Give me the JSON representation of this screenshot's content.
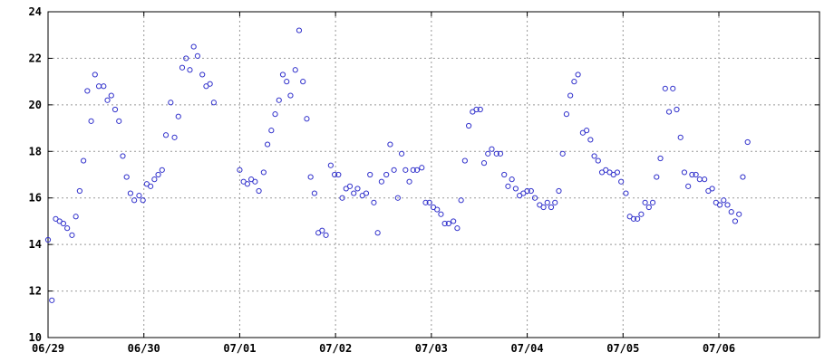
{
  "chart_data": {
    "type": "scatter",
    "title": "",
    "xlabel": "",
    "ylabel": "",
    "grid": true,
    "legend": "none",
    "xlim": [
      0,
      8.05
    ],
    "ylim": [
      10,
      24
    ],
    "x_ticks": [
      {
        "value": 0,
        "label": "06/29"
      },
      {
        "value": 1,
        "label": "06/30"
      },
      {
        "value": 2,
        "label": "07/01"
      },
      {
        "value": 3,
        "label": "07/02"
      },
      {
        "value": 4,
        "label": "07/03"
      },
      {
        "value": 5,
        "label": "07/04"
      },
      {
        "value": 6,
        "label": "07/05"
      },
      {
        "value": 7,
        "label": "07/06"
      }
    ],
    "y_ticks": [
      {
        "value": 10,
        "label": "10"
      },
      {
        "value": 12,
        "label": "12"
      },
      {
        "value": 14,
        "label": "14"
      },
      {
        "value": 16,
        "label": "16"
      },
      {
        "value": 18,
        "label": "18"
      },
      {
        "value": 20,
        "label": "20"
      },
      {
        "value": 22,
        "label": "22"
      },
      {
        "value": 24,
        "label": "24"
      }
    ],
    "colors": {
      "marker": "#3333cc",
      "grid": "#999999",
      "axis": "#000000"
    },
    "series": [
      {
        "points": [
          [
            0.0,
            14.2
          ],
          [
            0.04,
            11.6
          ],
          [
            0.08,
            15.1
          ],
          [
            0.12,
            15.0
          ],
          [
            0.16,
            14.9
          ],
          [
            0.2,
            14.7
          ],
          [
            0.25,
            14.4
          ],
          [
            0.29,
            15.2
          ],
          [
            0.33,
            16.3
          ],
          [
            0.37,
            17.6
          ],
          [
            0.41,
            20.6
          ],
          [
            0.45,
            19.3
          ],
          [
            0.49,
            21.3
          ],
          [
            0.53,
            20.8
          ],
          [
            0.58,
            20.8
          ],
          [
            0.62,
            20.2
          ],
          [
            0.66,
            20.4
          ],
          [
            0.7,
            19.8
          ],
          [
            0.74,
            19.3
          ],
          [
            0.78,
            17.8
          ],
          [
            0.82,
            16.9
          ],
          [
            0.86,
            16.2
          ],
          [
            0.9,
            15.9
          ],
          [
            0.95,
            16.1
          ],
          [
            0.99,
            15.9
          ],
          [
            1.03,
            16.6
          ],
          [
            1.07,
            16.5
          ],
          [
            1.11,
            16.8
          ],
          [
            1.15,
            17.0
          ],
          [
            1.19,
            17.2
          ],
          [
            1.23,
            18.7
          ],
          [
            1.28,
            20.1
          ],
          [
            1.32,
            18.6
          ],
          [
            1.36,
            19.5
          ],
          [
            1.4,
            21.6
          ],
          [
            1.44,
            22.0
          ],
          [
            1.48,
            21.5
          ],
          [
            1.52,
            22.5
          ],
          [
            1.56,
            22.1
          ],
          [
            1.61,
            21.3
          ],
          [
            1.65,
            20.8
          ],
          [
            1.69,
            20.9
          ],
          [
            1.73,
            20.1
          ],
          [
            2.0,
            17.2
          ],
          [
            2.04,
            16.7
          ],
          [
            2.08,
            16.6
          ],
          [
            2.12,
            16.8
          ],
          [
            2.16,
            16.7
          ],
          [
            2.2,
            16.3
          ],
          [
            2.25,
            17.1
          ],
          [
            2.29,
            18.3
          ],
          [
            2.33,
            18.9
          ],
          [
            2.37,
            19.6
          ],
          [
            2.41,
            20.2
          ],
          [
            2.45,
            21.3
          ],
          [
            2.49,
            21.0
          ],
          [
            2.53,
            20.4
          ],
          [
            2.58,
            21.5
          ],
          [
            2.62,
            23.2
          ],
          [
            2.66,
            21.0
          ],
          [
            2.7,
            19.4
          ],
          [
            2.74,
            16.9
          ],
          [
            2.78,
            16.2
          ],
          [
            2.82,
            14.5
          ],
          [
            2.86,
            14.6
          ],
          [
            2.9,
            14.4
          ],
          [
            2.95,
            17.4
          ],
          [
            2.99,
            17.0
          ],
          [
            3.03,
            17.0
          ],
          [
            3.07,
            16.0
          ],
          [
            3.11,
            16.4
          ],
          [
            3.15,
            16.5
          ],
          [
            3.19,
            16.2
          ],
          [
            3.23,
            16.4
          ],
          [
            3.28,
            16.1
          ],
          [
            3.32,
            16.2
          ],
          [
            3.36,
            17.0
          ],
          [
            3.4,
            15.8
          ],
          [
            3.44,
            14.5
          ],
          [
            3.48,
            16.7
          ],
          [
            3.53,
            17.0
          ],
          [
            3.57,
            18.3
          ],
          [
            3.61,
            17.2
          ],
          [
            3.65,
            16.0
          ],
          [
            3.69,
            17.9
          ],
          [
            3.73,
            17.2
          ],
          [
            3.77,
            16.7
          ],
          [
            3.81,
            17.2
          ],
          [
            3.85,
            17.2
          ],
          [
            3.9,
            17.3
          ],
          [
            3.94,
            15.8
          ],
          [
            3.98,
            15.8
          ],
          [
            4.02,
            15.6
          ],
          [
            4.06,
            15.5
          ],
          [
            4.1,
            15.3
          ],
          [
            4.14,
            14.9
          ],
          [
            4.18,
            14.9
          ],
          [
            4.23,
            15.0
          ],
          [
            4.27,
            14.7
          ],
          [
            4.31,
            15.9
          ],
          [
            4.35,
            17.6
          ],
          [
            4.39,
            19.1
          ],
          [
            4.43,
            19.7
          ],
          [
            4.47,
            19.8
          ],
          [
            4.51,
            19.8
          ],
          [
            4.55,
            17.5
          ],
          [
            4.59,
            17.9
          ],
          [
            4.63,
            18.1
          ],
          [
            4.68,
            17.9
          ],
          [
            4.72,
            17.9
          ],
          [
            4.76,
            17.0
          ],
          [
            4.8,
            16.5
          ],
          [
            4.84,
            16.8
          ],
          [
            4.88,
            16.4
          ],
          [
            4.92,
            16.1
          ],
          [
            4.96,
            16.2
          ],
          [
            5.0,
            16.3
          ],
          [
            5.04,
            16.3
          ],
          [
            5.08,
            16.0
          ],
          [
            5.13,
            15.7
          ],
          [
            5.17,
            15.6
          ],
          [
            5.21,
            15.8
          ],
          [
            5.25,
            15.6
          ],
          [
            5.29,
            15.8
          ],
          [
            5.33,
            16.3
          ],
          [
            5.37,
            17.9
          ],
          [
            5.41,
            19.6
          ],
          [
            5.45,
            20.4
          ],
          [
            5.49,
            21.0
          ],
          [
            5.53,
            21.3
          ],
          [
            5.58,
            18.8
          ],
          [
            5.62,
            18.9
          ],
          [
            5.66,
            18.5
          ],
          [
            5.7,
            17.8
          ],
          [
            5.74,
            17.6
          ],
          [
            5.78,
            17.1
          ],
          [
            5.82,
            17.2
          ],
          [
            5.86,
            17.1
          ],
          [
            5.9,
            17.0
          ],
          [
            5.94,
            17.1
          ],
          [
            5.98,
            16.7
          ],
          [
            6.03,
            16.2
          ],
          [
            6.07,
            15.2
          ],
          [
            6.11,
            15.1
          ],
          [
            6.15,
            15.1
          ],
          [
            6.19,
            15.3
          ],
          [
            6.23,
            15.8
          ],
          [
            6.27,
            15.6
          ],
          [
            6.31,
            15.8
          ],
          [
            6.35,
            16.9
          ],
          [
            6.39,
            17.7
          ],
          [
            6.44,
            20.7
          ],
          [
            6.48,
            19.7
          ],
          [
            6.52,
            20.7
          ],
          [
            6.56,
            19.8
          ],
          [
            6.6,
            18.6
          ],
          [
            6.64,
            17.1
          ],
          [
            6.68,
            16.5
          ],
          [
            6.72,
            17.0
          ],
          [
            6.76,
            17.0
          ],
          [
            6.8,
            16.8
          ],
          [
            6.85,
            16.8
          ],
          [
            6.89,
            16.3
          ],
          [
            6.93,
            16.4
          ],
          [
            6.97,
            15.8
          ],
          [
            7.01,
            15.7
          ],
          [
            7.05,
            15.9
          ],
          [
            7.09,
            15.7
          ],
          [
            7.13,
            15.4
          ],
          [
            7.17,
            15.0
          ],
          [
            7.21,
            15.3
          ],
          [
            7.25,
            16.9
          ],
          [
            7.3,
            18.4
          ]
        ]
      }
    ]
  }
}
